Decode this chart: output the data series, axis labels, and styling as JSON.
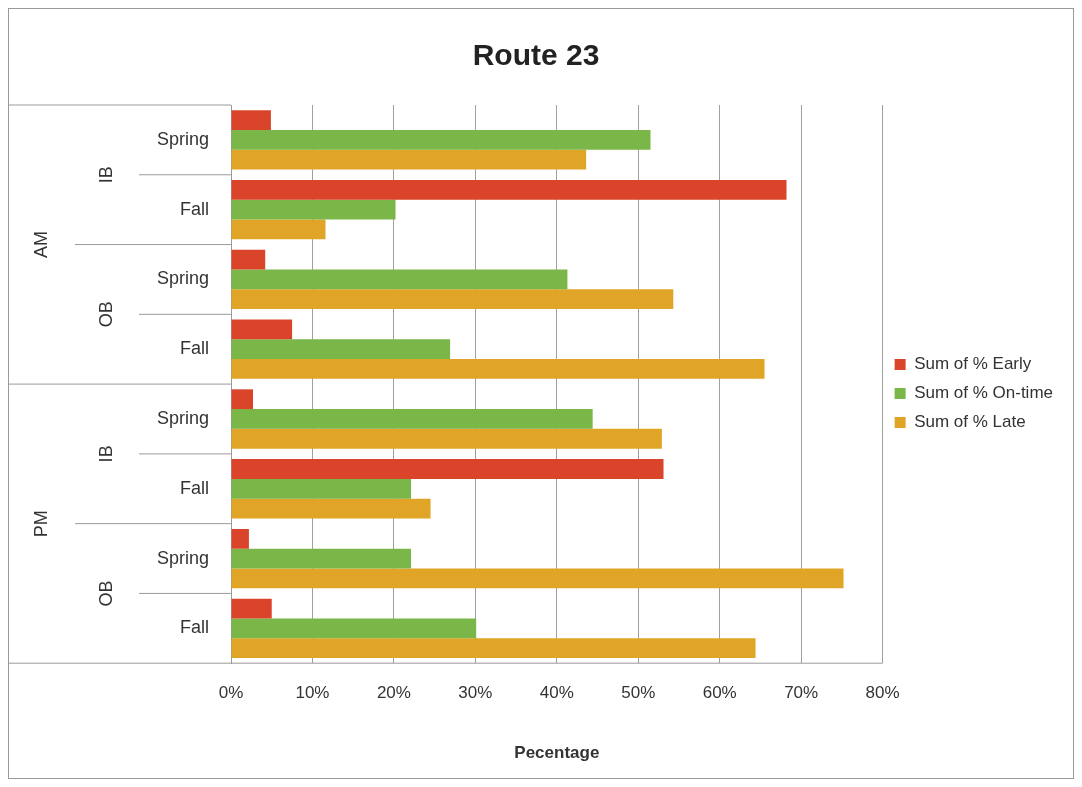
{
  "chart_data": {
    "type": "bar",
    "orientation": "horizontal",
    "title": "Route 23",
    "xlabel": "Pecentage",
    "categories": [
      "Spring",
      "Fall",
      "Spring",
      "Fall",
      "Spring",
      "Fall",
      "Spring",
      "Fall"
    ],
    "annotations": [
      "IB",
      "OB",
      "IB",
      "OB",
      "AM",
      "PM"
    ],
    "series": [
      {
        "name": "Sum of % Early",
        "color": "#d9442a",
        "values": [
          4.9,
          68.2,
          4.2,
          7.5,
          2.7,
          53.1,
          2.2,
          5.0
        ]
      },
      {
        "name": "Sum of % On-time",
        "color": "#7ab648",
        "values": [
          51.5,
          20.2,
          41.3,
          26.9,
          44.4,
          22.1,
          22.1,
          30.1
        ]
      },
      {
        "name": "Sum of % Late",
        "color": "#e0a526",
        "values": [
          43.6,
          11.6,
          54.3,
          65.5,
          52.9,
          24.5,
          75.2,
          64.4
        ]
      }
    ],
    "xlim": [
      0,
      80
    ],
    "xticks": [
      {
        "value": 0,
        "label": "0%"
      },
      {
        "value": 10,
        "label": "10%"
      },
      {
        "value": 20,
        "label": "20%"
      },
      {
        "value": 30,
        "label": "30%"
      },
      {
        "value": 40,
        "label": "40%"
      },
      {
        "value": 50,
        "label": "50%"
      },
      {
        "value": 60,
        "label": "60%"
      },
      {
        "value": 70,
        "label": "70%"
      },
      {
        "value": 80,
        "label": "80%"
      }
    ],
    "grid": "x",
    "legend": "right"
  }
}
